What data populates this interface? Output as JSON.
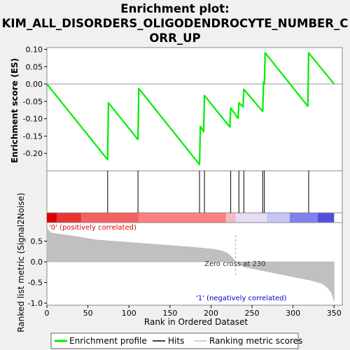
{
  "title_line1": "Enrichment plot:",
  "title_line2": "KIM_ALL_DISORDERS_OLIGODENDROCYTE_NUMBER_C",
  "title_line3": "ORR_UP",
  "chart_data": {
    "type": "line",
    "x_label": "Rank in Ordered Dataset",
    "es_ylabel": "Enrichment score (ES)",
    "rank_ylabel": "Ranked list metric (Signal2Noise)",
    "xlim": [
      0,
      360
    ],
    "es_ylim": [
      -0.25,
      0.105
    ],
    "rank_ylim": [
      -1.05,
      0.95
    ],
    "x_ticks": [
      "0",
      "50",
      "100",
      "150",
      "200",
      "250",
      "300",
      "350"
    ],
    "x_tick_values": [
      0,
      50,
      100,
      150,
      200,
      250,
      300,
      350
    ],
    "es_ticks": [
      "0.10",
      "0.05",
      "0.00",
      "-0.05",
      "-0.10",
      "-0.15",
      "-0.20"
    ],
    "es_tick_values": [
      0.1,
      0.05,
      0.0,
      -0.05,
      -0.1,
      -0.15,
      -0.2
    ],
    "rank_ticks": [
      "0.5",
      "0.0",
      "-0.5",
      "-1.0"
    ],
    "rank_tick_values": [
      0.5,
      0.0,
      -0.5,
      -1.0
    ],
    "es_profile": {
      "name": "Enrichment profile",
      "x": [
        0,
        74,
        75,
        111,
        112,
        186,
        187,
        191,
        192,
        223,
        224,
        233,
        234,
        239,
        240,
        263,
        264,
        265,
        266,
        318,
        319,
        350
      ],
      "y": [
        0.0,
        -0.218,
        -0.054,
        -0.16,
        -0.013,
        -0.232,
        -0.122,
        -0.137,
        -0.033,
        -0.124,
        -0.069,
        -0.099,
        -0.054,
        -0.066,
        -0.015,
        -0.079,
        0.005,
        0.0,
        0.09,
        -0.064,
        0.09,
        0.0
      ]
    },
    "hits": [
      74,
      111,
      186,
      192,
      224,
      234,
      240,
      263,
      265,
      319
    ],
    "ranking_metric": {
      "name": "Ranking metric scores",
      "x": [
        0,
        5,
        20,
        40,
        60,
        80,
        100,
        120,
        140,
        160,
        180,
        195,
        205,
        212,
        218,
        222,
        226,
        230,
        240,
        260,
        280,
        300,
        320,
        335,
        342,
        347,
        350
      ],
      "y": [
        0.8,
        0.7,
        0.66,
        0.6,
        0.53,
        0.5,
        0.47,
        0.44,
        0.41,
        0.38,
        0.35,
        0.32,
        0.3,
        0.27,
        0.23,
        0.18,
        0.1,
        0.0,
        -0.12,
        -0.2,
        -0.28,
        -0.36,
        -0.44,
        -0.52,
        -0.62,
        -0.75,
        -0.95
      ]
    },
    "zero_cross_label": "Zero cross at 230",
    "zero_cross_x": 230,
    "pos_label": "'0' (positively correlated)",
    "neg_label": "'1' (negatively correlated)",
    "legend": [
      {
        "label": "Enrichment profile",
        "color": "#00ee00"
      },
      {
        "label": "Hits",
        "color": "#000000"
      },
      {
        "label": "Ranking metric scores",
        "color": "#c0c0c0"
      }
    ],
    "colors": {
      "profile": "#00ee00",
      "hits": "#000000",
      "metric_fill": "#c0c0c0",
      "pos_text": "#dd0000",
      "neg_text": "#0000cc"
    },
    "heat_band": {
      "x": [
        0,
        12,
        42,
        112,
        218,
        230,
        268,
        296,
        330,
        350
      ],
      "colors": [
        "#dd0000",
        "#ee3333",
        "#f56060",
        "#fb8080",
        "#f8b8c0",
        "#e8dcf4",
        "#c8c4f8",
        "#8080ee",
        "#5050dd",
        "#2020cc"
      ]
    }
  }
}
